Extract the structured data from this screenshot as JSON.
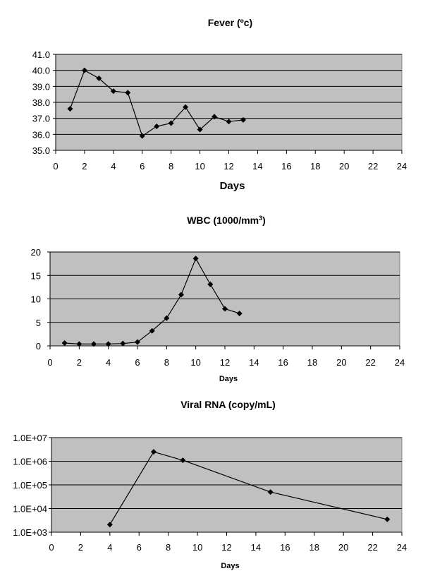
{
  "chart_data": [
    {
      "type": "line",
      "title": "Fever (ºc)",
      "xlabel": "Days",
      "ylabel": "",
      "xlim": [
        0,
        24
      ],
      "ylim": [
        35.0,
        41.0
      ],
      "x_ticks": [
        "0",
        "2",
        "4",
        "6",
        "8",
        "10",
        "12",
        "14",
        "16",
        "18",
        "20",
        "22",
        "24"
      ],
      "y_ticks": [
        "35.0",
        "36.0",
        "37.0",
        "38.0",
        "39.0",
        "40.0",
        "41.0"
      ],
      "grid": true,
      "background": "#c0c0c0",
      "series": [
        {
          "x": [
            1,
            2,
            3,
            4,
            5,
            6,
            7,
            8,
            9,
            10,
            11,
            12,
            13
          ],
          "values": [
            37.6,
            40.0,
            39.5,
            38.7,
            38.6,
            35.9,
            36.5,
            36.7,
            37.7,
            36.3,
            37.1,
            36.8,
            36.9
          ]
        }
      ]
    },
    {
      "type": "line",
      "title": "WBC (1000/mm",
      "title_sup": "3",
      "title_close": ")",
      "xlabel": "Days",
      "ylabel": "",
      "xlim": [
        0,
        24
      ],
      "ylim": [
        0,
        20
      ],
      "x_ticks": [
        "0",
        "2",
        "4",
        "6",
        "8",
        "10",
        "12",
        "14",
        "16",
        "18",
        "20",
        "22",
        "24"
      ],
      "y_ticks": [
        "0",
        "5",
        "10",
        "15",
        "20"
      ],
      "grid": true,
      "background": "#c0c0c0",
      "series": [
        {
          "x": [
            1,
            2,
            3,
            4,
            5,
            6,
            7,
            8,
            9,
            10,
            11,
            12,
            13
          ],
          "values": [
            0.6,
            0.4,
            0.4,
            0.4,
            0.5,
            0.8,
            3.2,
            5.9,
            10.9,
            18.6,
            13.1,
            7.9,
            6.9
          ]
        }
      ]
    },
    {
      "type": "line",
      "title": "Viral RNA (copy/mL)",
      "xlabel": "Days",
      "ylabel": "",
      "xlim": [
        0,
        24
      ],
      "ylim": [
        1000,
        10000000
      ],
      "y_scale": "log",
      "x_ticks": [
        "0",
        "2",
        "4",
        "6",
        "8",
        "10",
        "12",
        "14",
        "16",
        "18",
        "20",
        "22",
        "24"
      ],
      "y_ticks": [
        "1.0E+03",
        "1.0E+04",
        "1.0E+05",
        "1.0E+06",
        "1.0E+07"
      ],
      "grid": true,
      "background": "#c0c0c0",
      "series": [
        {
          "x": [
            4,
            7,
            9,
            15,
            23
          ],
          "values": [
            2100,
            2500000,
            1100000,
            50000,
            3500
          ]
        }
      ]
    }
  ]
}
